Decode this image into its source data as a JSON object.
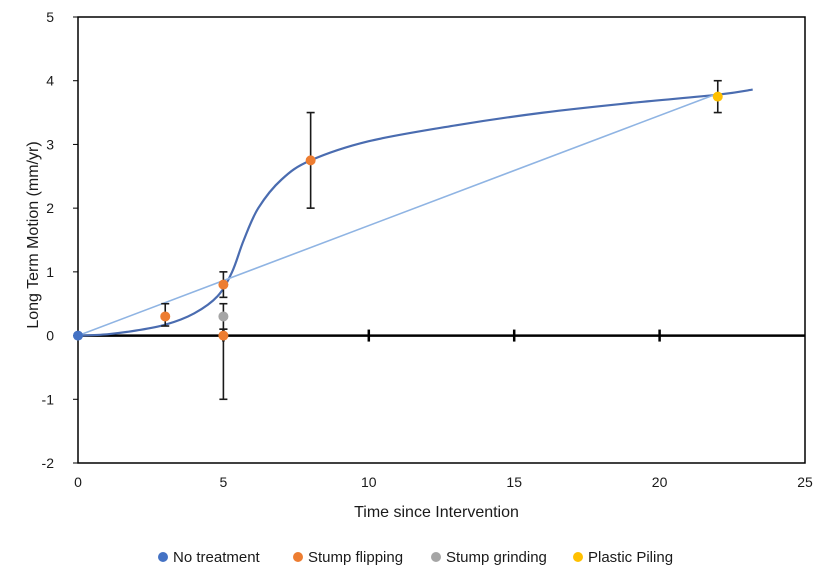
{
  "chart_data": {
    "type": "scatter",
    "xlabel": "Time since Intervention",
    "ylabel": "Long Term Motion (mm/yr)",
    "xlim": [
      0,
      25
    ],
    "ylim": [
      -2,
      5
    ],
    "xticks": [
      "0",
      "5",
      "10",
      "15",
      "20",
      "25"
    ],
    "yticks": [
      "-2",
      "-1",
      "0",
      "1",
      "2",
      "3",
      "4",
      "5"
    ],
    "grid": false,
    "legend_position": "bottom",
    "series": [
      {
        "name": "No treatment",
        "color": "#4472c4",
        "points": [
          {
            "x": 0,
            "y": 0,
            "err_low": 0,
            "err_high": 0
          }
        ]
      },
      {
        "name": "Stump flipping",
        "color": "#ed7d31",
        "points": [
          {
            "x": 3,
            "y": 0.3,
            "err_low": 0.15,
            "err_high": 0.5
          },
          {
            "x": 5,
            "y": 0.8,
            "err_low": 0.6,
            "err_high": 1.0
          },
          {
            "x": 5,
            "y": 0.0,
            "err_low": -1.0,
            "err_high": 0.1
          },
          {
            "x": 8,
            "y": 2.75,
            "err_low": 2.0,
            "err_high": 3.5
          }
        ]
      },
      {
        "name": "Stump grinding",
        "color": "#a5a5a5",
        "points": [
          {
            "x": 5,
            "y": 0.3,
            "err_low": 0.1,
            "err_high": 0.5
          }
        ]
      },
      {
        "name": "Plastic Piling",
        "color": "#ffc000",
        "points": [
          {
            "x": 22,
            "y": 3.75,
            "err_low": 3.5,
            "err_high": 4.0
          }
        ]
      }
    ],
    "fit_curves": [
      {
        "kind": "sigmoid",
        "color": "#4a6cb0",
        "points": [
          [
            0,
            0
          ],
          [
            1,
            0.02
          ],
          [
            2,
            0.08
          ],
          [
            3,
            0.17
          ],
          [
            4,
            0.35
          ],
          [
            4.8,
            0.62
          ],
          [
            5.3,
            1.0
          ],
          [
            5.7,
            1.5
          ],
          [
            6.2,
            2.0
          ],
          [
            7,
            2.45
          ],
          [
            8,
            2.75
          ],
          [
            10,
            3.05
          ],
          [
            13,
            3.3
          ],
          [
            16,
            3.5
          ],
          [
            19,
            3.65
          ],
          [
            22,
            3.78
          ],
          [
            23.2,
            3.86
          ]
        ]
      },
      {
        "kind": "linear",
        "color": "#8fb4e3",
        "points": [
          [
            0,
            0
          ],
          [
            22,
            3.8
          ]
        ]
      }
    ]
  }
}
